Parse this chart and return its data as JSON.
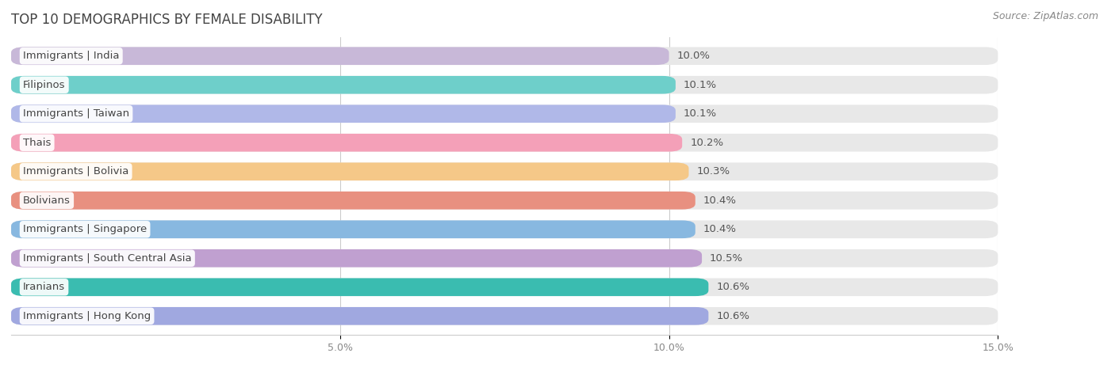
{
  "title": "TOP 10 DEMOGRAPHICS BY FEMALE DISABILITY",
  "source": "Source: ZipAtlas.com",
  "categories": [
    "Immigrants | India",
    "Filipinos",
    "Immigrants | Taiwan",
    "Thais",
    "Immigrants | Bolivia",
    "Bolivians",
    "Immigrants | Singapore",
    "Immigrants | South Central Asia",
    "Iranians",
    "Immigrants | Hong Kong"
  ],
  "values": [
    10.0,
    10.1,
    10.1,
    10.2,
    10.3,
    10.4,
    10.4,
    10.5,
    10.6,
    10.6
  ],
  "labels": [
    "10.0%",
    "10.1%",
    "10.1%",
    "10.2%",
    "10.3%",
    "10.4%",
    "10.4%",
    "10.5%",
    "10.6%",
    "10.6%"
  ],
  "bar_colors": [
    "#c8b8d8",
    "#6ecfca",
    "#b0b8e8",
    "#f4a0b8",
    "#f5c888",
    "#e89080",
    "#88b8e0",
    "#c0a0d0",
    "#3abcb0",
    "#a0a8e0"
  ],
  "row_bg_color": "#eeeeee",
  "xlim_max": 15.0,
  "xticks": [
    5.0,
    10.0,
    15.0
  ],
  "xticklabels": [
    "5.0%",
    "10.0%",
    "15.0%"
  ],
  "title_fontsize": 12,
  "label_fontsize": 9.5,
  "tick_fontsize": 9,
  "source_fontsize": 9
}
